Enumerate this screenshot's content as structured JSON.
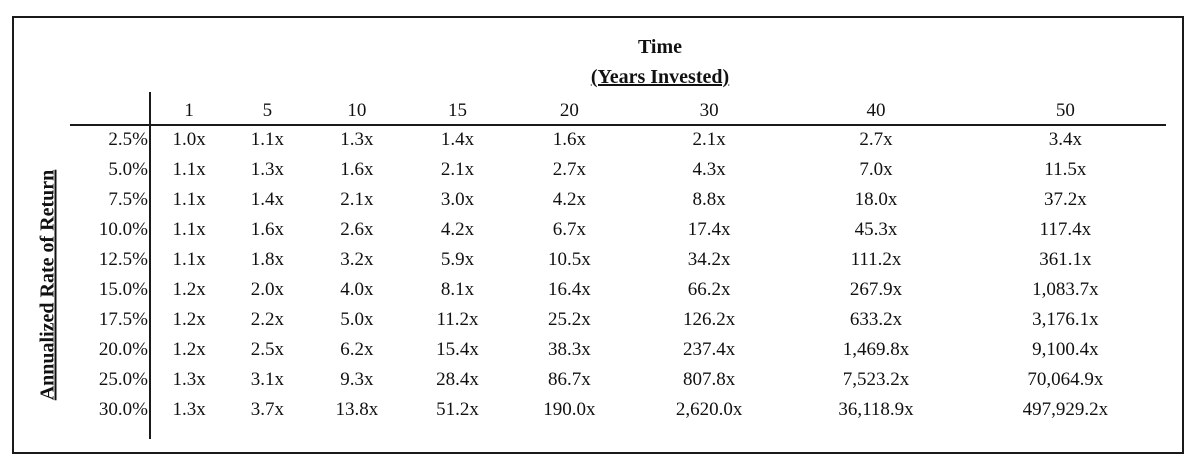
{
  "title": {
    "line1": "Time",
    "line2": "(Years Invested)"
  },
  "ylabel": "Annualized Rate of Return",
  "columns": [
    "1",
    "5",
    "10",
    "15",
    "20",
    "30",
    "40",
    "50"
  ],
  "rows": [
    {
      "rate": "2.5%",
      "values": [
        "1.0x",
        "1.1x",
        "1.3x",
        "1.4x",
        "1.6x",
        "2.1x",
        "2.7x",
        "3.4x"
      ]
    },
    {
      "rate": "5.0%",
      "values": [
        "1.1x",
        "1.3x",
        "1.6x",
        "2.1x",
        "2.7x",
        "4.3x",
        "7.0x",
        "11.5x"
      ]
    },
    {
      "rate": "7.5%",
      "values": [
        "1.1x",
        "1.4x",
        "2.1x",
        "3.0x",
        "4.2x",
        "8.8x",
        "18.0x",
        "37.2x"
      ]
    },
    {
      "rate": "10.0%",
      "values": [
        "1.1x",
        "1.6x",
        "2.6x",
        "4.2x",
        "6.7x",
        "17.4x",
        "45.3x",
        "117.4x"
      ]
    },
    {
      "rate": "12.5%",
      "values": [
        "1.1x",
        "1.8x",
        "3.2x",
        "5.9x",
        "10.5x",
        "34.2x",
        "111.2x",
        "361.1x"
      ]
    },
    {
      "rate": "15.0%",
      "values": [
        "1.2x",
        "2.0x",
        "4.0x",
        "8.1x",
        "16.4x",
        "66.2x",
        "267.9x",
        "1,083.7x"
      ]
    },
    {
      "rate": "17.5%",
      "values": [
        "1.2x",
        "2.2x",
        "5.0x",
        "11.2x",
        "25.2x",
        "126.2x",
        "633.2x",
        "3,176.1x"
      ]
    },
    {
      "rate": "20.0%",
      "values": [
        "1.2x",
        "2.5x",
        "6.2x",
        "15.4x",
        "38.3x",
        "237.4x",
        "1,469.8x",
        "9,100.4x"
      ]
    },
    {
      "rate": "25.0%",
      "values": [
        "1.3x",
        "3.1x",
        "9.3x",
        "28.4x",
        "86.7x",
        "807.8x",
        "7,523.2x",
        "70,064.9x"
      ]
    },
    {
      "rate": "30.0%",
      "values": [
        "1.3x",
        "3.7x",
        "13.8x",
        "51.2x",
        "190.0x",
        "2,620.0x",
        "36,118.9x",
        "497,929.2x"
      ]
    }
  ]
}
